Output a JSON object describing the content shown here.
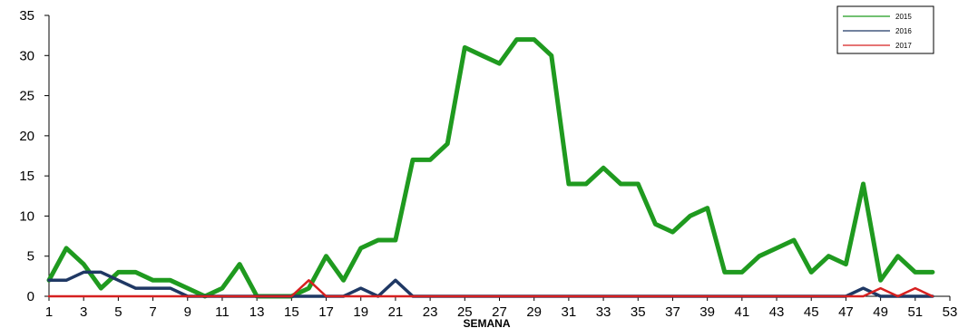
{
  "chart_data": {
    "type": "line",
    "title": "",
    "xlabel": "SEMANA",
    "ylabel": "",
    "xlim": [
      1,
      53
    ],
    "ylim": [
      0,
      35
    ],
    "x_ticks": [
      1,
      3,
      5,
      7,
      9,
      11,
      13,
      15,
      17,
      19,
      21,
      23,
      25,
      27,
      29,
      31,
      33,
      35,
      37,
      39,
      41,
      43,
      45,
      47,
      49,
      51,
      53
    ],
    "y_ticks": [
      0,
      5,
      10,
      15,
      20,
      25,
      30,
      35
    ],
    "legend_position": "top-right",
    "series": [
      {
        "name": "2015",
        "color": "#1f9a1f",
        "x": [
          1,
          2,
          3,
          4,
          5,
          6,
          7,
          8,
          9,
          10,
          11,
          12,
          13,
          14,
          15,
          16,
          17,
          18,
          19,
          20,
          21,
          22,
          23,
          24,
          25,
          26,
          27,
          28,
          29,
          30,
          31,
          32,
          33,
          34,
          35,
          36,
          37,
          38,
          39,
          40,
          41,
          42,
          43,
          44,
          45,
          46,
          47,
          48,
          49,
          50,
          51,
          52
        ],
        "values": [
          2,
          6,
          4,
          1,
          3,
          3,
          2,
          2,
          1,
          0,
          1,
          4,
          0,
          0,
          0,
          1,
          5,
          2,
          6,
          7,
          7,
          17,
          17,
          19,
          31,
          30,
          29,
          32,
          32,
          30,
          14,
          14,
          16,
          14,
          14,
          9,
          8,
          10,
          11,
          3,
          3,
          5,
          6,
          7,
          3,
          5,
          4,
          14,
          2,
          5,
          3,
          3
        ]
      },
      {
        "name": "2016",
        "color": "#1f3864",
        "x": [
          1,
          2,
          3,
          4,
          5,
          6,
          7,
          8,
          9,
          10,
          11,
          12,
          13,
          14,
          15,
          16,
          17,
          18,
          19,
          20,
          21,
          22,
          23,
          24,
          25,
          26,
          27,
          28,
          29,
          30,
          31,
          32,
          33,
          34,
          35,
          36,
          37,
          38,
          39,
          40,
          41,
          42,
          43,
          44,
          45,
          46,
          47,
          48,
          49,
          50,
          51,
          52
        ],
        "values": [
          2,
          2,
          3,
          3,
          2,
          1,
          1,
          1,
          0,
          0,
          0,
          0,
          0,
          0,
          0,
          0,
          0,
          0,
          1,
          0,
          2,
          0,
          0,
          0,
          0,
          0,
          0,
          0,
          0,
          0,
          0,
          0,
          0,
          0,
          0,
          0,
          0,
          0,
          0,
          0,
          0,
          0,
          0,
          0,
          0,
          0,
          0,
          1,
          0,
          0,
          0,
          0
        ]
      },
      {
        "name": "2017",
        "color": "#d62020",
        "x": [
          1,
          2,
          3,
          4,
          5,
          6,
          7,
          8,
          9,
          10,
          11,
          12,
          13,
          14,
          15,
          16,
          17,
          18,
          19,
          20,
          21,
          22,
          23,
          24,
          25,
          26,
          27,
          28,
          29,
          30,
          31,
          32,
          33,
          34,
          35,
          36,
          37,
          38,
          39,
          40,
          41,
          42,
          43,
          44,
          45,
          46,
          47,
          48,
          49,
          50,
          51,
          52
        ],
        "values": [
          0,
          0,
          0,
          0,
          0,
          0,
          0,
          0,
          0,
          0,
          0,
          0,
          0,
          0,
          0,
          2,
          0,
          0,
          0,
          0,
          0,
          0,
          0,
          0,
          0,
          0,
          0,
          0,
          0,
          0,
          0,
          0,
          0,
          0,
          0,
          0,
          0,
          0,
          0,
          0,
          0,
          0,
          0,
          0,
          0,
          0,
          0,
          0,
          1,
          0,
          1,
          0
        ]
      }
    ]
  }
}
